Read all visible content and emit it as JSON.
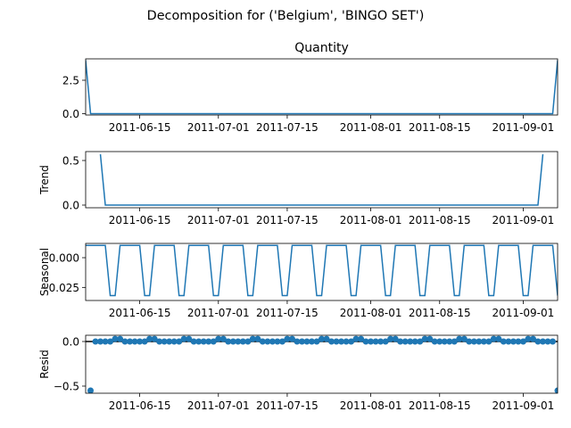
{
  "figure": {
    "suptitle": "Decomposition for ('Belgium', 'BINGO SET')",
    "line_color": "#1f77b4",
    "zero_line_color": "#000000"
  },
  "x_axis": {
    "start": "2011-06-04",
    "end": "2011-09-08",
    "tick_labels": [
      "2011-06-15",
      "2011-07-01",
      "2011-07-15",
      "2011-08-01",
      "2011-08-15",
      "2011-09-01"
    ]
  },
  "chart_data": [
    {
      "type": "line",
      "title": "Quantity",
      "ylabel": "",
      "ylim": [
        -0.1,
        4.1
      ],
      "yticks": [
        "0.0",
        "2.5"
      ],
      "ytick_values": [
        0,
        2.5
      ],
      "series": [
        {
          "x": [
            "2011-06-04",
            "2011-06-05",
            "2011-09-07",
            "2011-09-08"
          ],
          "y": [
            4,
            0,
            0,
            4
          ]
        }
      ]
    },
    {
      "type": "line",
      "title": "",
      "ylabel": "Trend",
      "ylim": [
        -0.03,
        0.6
      ],
      "yticks": [
        "0.0",
        "0.5"
      ],
      "ytick_values": [
        0,
        0.5
      ],
      "series": [
        {
          "x": [
            "2011-06-07",
            "2011-06-08",
            "2011-09-04",
            "2011-09-05"
          ],
          "y": [
            0.57,
            0,
            0,
            0.57
          ]
        }
      ]
    },
    {
      "type": "line",
      "title": "",
      "ylabel": "Seasonal",
      "ylim": [
        -0.036,
        0.012
      ],
      "yticks": [
        "0.000",
        "−0.025"
      ],
      "ytick_values": [
        0,
        -0.025
      ],
      "pattern": [
        0.0103,
        0.0103,
        0.0103,
        0.0103,
        0.0103,
        -0.0319,
        -0.0319
      ],
      "pattern_start": "2011-06-04"
    },
    {
      "type": "scatter",
      "title": "",
      "ylabel": "Resid",
      "ylim": [
        -0.58,
        0.07
      ],
      "yticks": [
        "0.0",
        "−0.5"
      ],
      "ytick_values": [
        0,
        -0.5
      ],
      "zero_line": true,
      "values": [
        -0.55,
        0,
        0,
        0,
        0,
        0.029,
        0.029,
        0,
        0,
        0,
        0,
        0,
        0.029,
        0.029,
        0,
        0,
        0,
        0,
        0,
        0.029,
        0.029,
        0,
        0,
        0,
        0,
        0,
        0.029,
        0.029,
        0,
        0,
        0,
        0,
        0,
        0.029,
        0.029,
        0,
        0,
        0,
        0,
        0,
        0.029,
        0.029,
        0,
        0,
        0,
        0,
        0,
        0.029,
        0.029,
        0,
        0,
        0,
        0,
        0,
        0.029,
        0.029,
        0,
        0,
        0,
        0,
        0,
        0.029,
        0.029,
        0,
        0,
        0,
        0,
        0,
        0.029,
        0.029,
        0,
        0,
        0,
        0,
        0,
        0.029,
        0.029,
        0,
        0,
        0,
        0,
        0,
        0.029,
        0.029,
        0,
        0,
        0,
        0,
        0,
        0.029,
        0.029,
        0,
        0,
        0,
        0,
        -0.55
      ],
      "values_start": "2011-06-05"
    }
  ]
}
